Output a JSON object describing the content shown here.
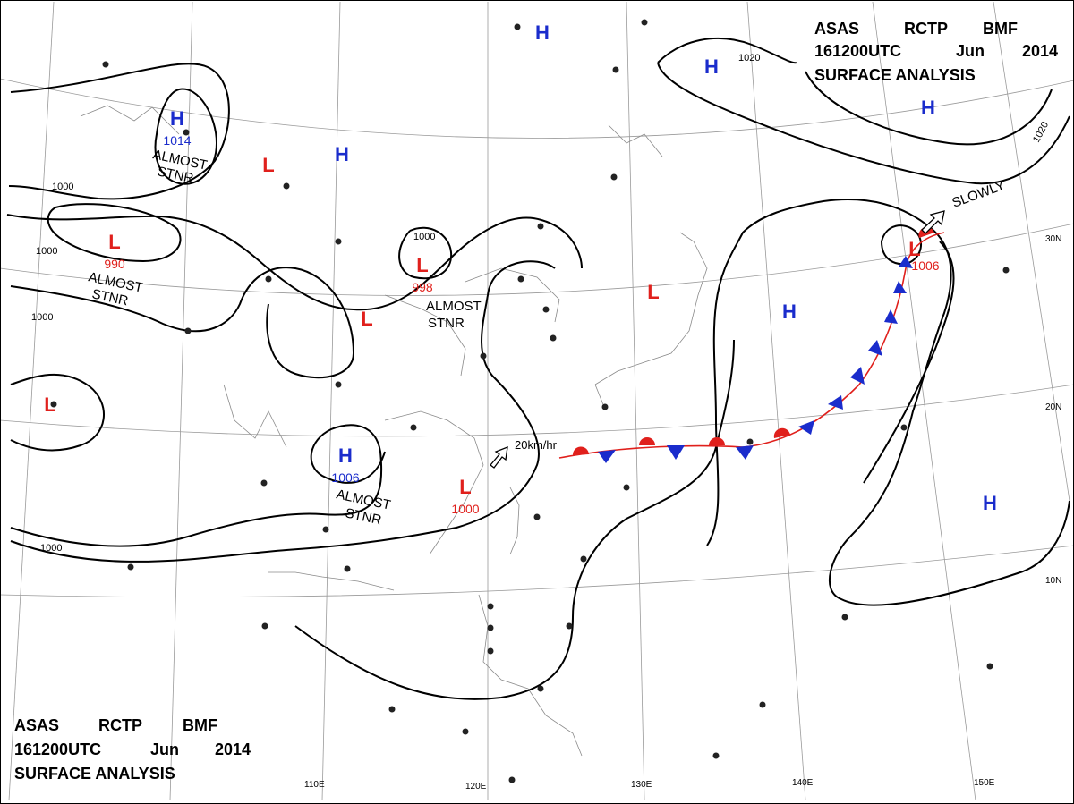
{
  "header": {
    "line1": [
      "ASAS",
      "RCTP",
      "BMF"
    ],
    "line2": [
      "161200UTC",
      "Jun",
      "2014"
    ],
    "line3": "SURFACE ANALYSIS"
  },
  "footer": {
    "line1": [
      "ASAS",
      "RCTP",
      "BMF"
    ],
    "line2": [
      "161200UTC",
      "Jun",
      "2014"
    ],
    "line3": "SURFACE ANALYSIS"
  },
  "longitudes": [
    "110E",
    "120E",
    "130E",
    "140E",
    "150E"
  ],
  "latitudes": [
    "30N",
    "20N",
    "10N"
  ],
  "pressure_systems": [
    {
      "type": "H",
      "value": "1014",
      "color": "#1a2ccc"
    },
    {
      "type": "H",
      "value": "",
      "color": "#1a2ccc"
    },
    {
      "type": "H",
      "value": "",
      "color": "#1a2ccc"
    },
    {
      "type": "H",
      "value": "",
      "color": "#1a2ccc"
    },
    {
      "type": "H",
      "value": "",
      "color": "#1a2ccc"
    },
    {
      "type": "H",
      "value": "",
      "color": "#1a2ccc"
    },
    {
      "type": "H",
      "value": "",
      "color": "#1a2ccc"
    },
    {
      "type": "H",
      "value": "1006",
      "color": "#1a2ccc"
    },
    {
      "type": "L",
      "value": "990",
      "color": "#e0201c"
    },
    {
      "type": "L",
      "value": "",
      "color": "#e0201c"
    },
    {
      "type": "L",
      "value": "",
      "color": "#e0201c"
    },
    {
      "type": "L",
      "value": "998",
      "color": "#e0201c"
    },
    {
      "type": "L",
      "value": "",
      "color": "#e0201c"
    },
    {
      "type": "L",
      "value": "",
      "color": "#e0201c"
    },
    {
      "type": "L",
      "value": "1000",
      "color": "#e0201c"
    },
    {
      "type": "L",
      "value": "1006",
      "color": "#e0201c"
    }
  ],
  "annotations": {
    "almost_stnr": [
      "ALMOST",
      "STNR"
    ],
    "slowly": "SLOWLY",
    "motion_speed": "20km/hr"
  },
  "isobar_labels": [
    "1000",
    "1000",
    "1000",
    "1000",
    "1000",
    "1020",
    "1020"
  ],
  "colors": {
    "high": "#1a2ccc",
    "low": "#e0201c",
    "warm_front": "#e0201c",
    "cold_front": "#1a2ccc",
    "isobar": "#000000",
    "grid": "#9a9a9a",
    "coast": "#8a8a8a"
  }
}
